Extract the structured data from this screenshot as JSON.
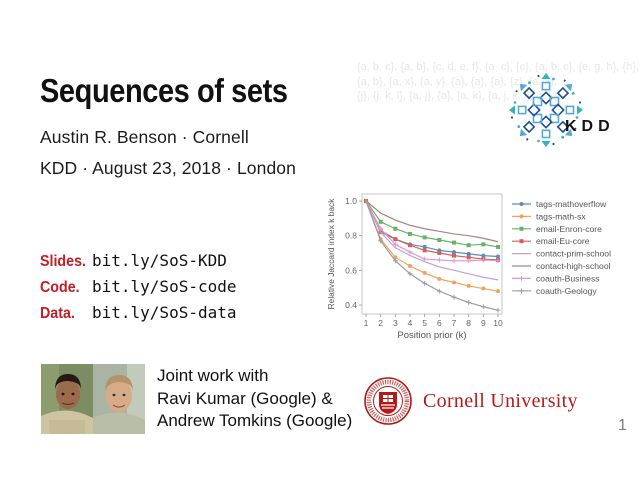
{
  "slide": {
    "title": "Sequences of sets",
    "author_line": "Austin R. Benson · Cornell",
    "venue_line": "KDD · August 23, 2018 · London",
    "links": [
      {
        "label": "Slides.",
        "url": "bit.ly/SoS-KDD"
      },
      {
        "label": "Code.",
        "url": "bit.ly/SoS-code"
      },
      {
        "label": "Data.",
        "url": "bit.ly/SoS-data"
      }
    ],
    "joint_work_lines": [
      "Joint work with",
      "Ravi Kumar (Google) &",
      "Andrew Tomkins (Google)"
    ],
    "watermark_lines": [
      "{a, b, c}, {a, b}, {c, d, e, f}, {a, c}, {c}, {a, b, c}, {e, g, h}, {h}, ...",
      "{a, b}, {a, x}, {a, y}, {a}, {a}, {a}, {z}, {a, x}, ...",
      "{j}, {j, k, l}, {a, j}, {a}, {a, k}, {a, j, k, l}, {j, k}, ..."
    ],
    "kdd_logo_text": "KDD",
    "cornell_logo_text": "Cornell University",
    "page_number": "1",
    "accent_red": "#bf2026",
    "cornell_red": "#b31b1b",
    "kdd_blue_dark": "#1d4f91",
    "kdd_blue_light": "#58a8d7"
  },
  "chart_data": {
    "type": "line",
    "title": "",
    "xlabel": "Position prior (k)",
    "ylabel": "Relative Jaccard index k back",
    "x": [
      1,
      2,
      3,
      4,
      5,
      6,
      7,
      8,
      9,
      10
    ],
    "xticks": [
      1,
      2,
      3,
      4,
      5,
      6,
      7,
      8,
      9,
      10
    ],
    "yticks": [
      0.4,
      0.6,
      0.8,
      1.0
    ],
    "ylim": [
      0.35,
      1.03
    ],
    "grid": false,
    "legend_position": "right",
    "series": [
      {
        "name": "tags-mathoverflow",
        "color": "#5b8db8",
        "marker": "circle",
        "values": [
          1.0,
          0.82,
          0.78,
          0.75,
          0.735,
          0.715,
          0.705,
          0.695,
          0.685,
          0.68
        ]
      },
      {
        "name": "tags-math-sx",
        "color": "#f2a15f",
        "marker": "circle",
        "values": [
          1.0,
          0.78,
          0.675,
          0.625,
          0.585,
          0.55,
          0.53,
          0.51,
          0.495,
          0.48
        ]
      },
      {
        "name": "email-Enron-core",
        "color": "#66b266",
        "marker": "square",
        "values": [
          1.0,
          0.88,
          0.84,
          0.81,
          0.79,
          0.775,
          0.76,
          0.745,
          0.75,
          0.735
        ]
      },
      {
        "name": "email-Eu-core",
        "color": "#d45f5c",
        "marker": "square",
        "values": [
          1.0,
          0.83,
          0.78,
          0.745,
          0.715,
          0.7,
          0.685,
          0.675,
          0.665,
          0.66
        ]
      },
      {
        "name": "contact-prim-school",
        "color": "#bda4d4",
        "marker": "none",
        "values": [
          1.0,
          0.82,
          0.73,
          0.685,
          0.65,
          0.62,
          0.6,
          0.58,
          0.56,
          0.545
        ]
      },
      {
        "name": "contact-high-school",
        "color": "#a9847b",
        "marker": "none",
        "values": [
          1.0,
          0.93,
          0.89,
          0.86,
          0.84,
          0.825,
          0.81,
          0.8,
          0.785,
          0.765
        ]
      },
      {
        "name": "coauth-Business",
        "color": "#e295c9",
        "marker": "plus",
        "values": [
          1.0,
          0.84,
          0.75,
          0.705,
          0.665,
          0.66,
          0.655,
          0.655,
          0.66,
          0.655
        ]
      },
      {
        "name": "coauth-Geology",
        "color": "#9d9d9d",
        "marker": "plus",
        "values": [
          1.0,
          0.77,
          0.655,
          0.58,
          0.525,
          0.48,
          0.445,
          0.415,
          0.39,
          0.37
        ]
      }
    ]
  }
}
